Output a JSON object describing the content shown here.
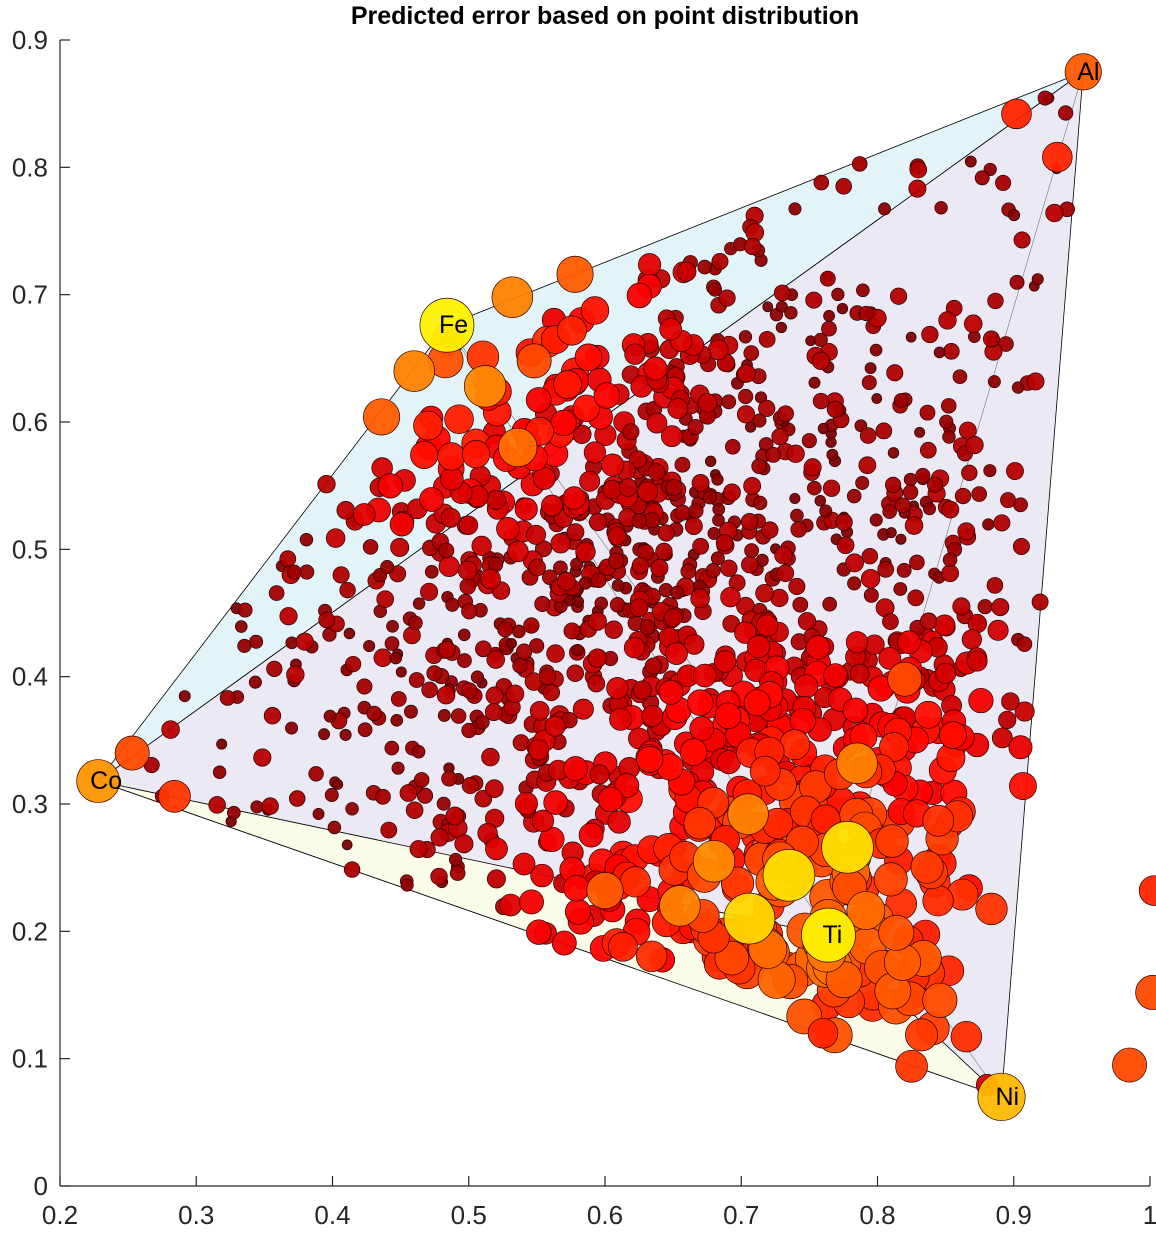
{
  "chart_data": {
    "type": "scatter",
    "title": "Predicted error based on point distribution",
    "xlabel": "",
    "ylabel": "",
    "xlim": [
      0.2,
      1.0
    ],
    "ylim": [
      0,
      0.9
    ],
    "xticks": [
      "0.2",
      "0.3",
      "0.4",
      "0.5",
      "0.6",
      "0.7",
      "0.8",
      "0.9",
      "1"
    ],
    "yticks": [
      "0",
      "0.1",
      "0.2",
      "0.3",
      "0.4",
      "0.5",
      "0.6",
      "0.7",
      "0.8",
      "0.9"
    ],
    "grid": false,
    "legend": "none",
    "colormap": "hot",
    "vertices": [
      {
        "label": "Co",
        "x": 0.228,
        "y": 0.318
      },
      {
        "label": "Fe",
        "x": 0.484,
        "y": 0.676
      },
      {
        "label": "Al",
        "x": 0.951,
        "y": 0.875
      },
      {
        "label": "Ni",
        "x": 0.891,
        "y": 0.07
      },
      {
        "label": "Ti",
        "x": 0.764,
        "y": 0.197
      }
    ],
    "faces": [
      {
        "vertices": [
          "Co",
          "Fe",
          "Al"
        ],
        "color": "#dff3f6"
      },
      {
        "vertices": [
          "Co",
          "Al",
          "Ni"
        ],
        "color": "#e9e7f3"
      },
      {
        "vertices": [
          "Co",
          "Ni",
          "Ti"
        ],
        "color": "#fdfde9"
      }
    ],
    "points": [
      {
        "x": 0.228,
        "y": 0.318,
        "error": 0.75
      },
      {
        "x": 0.484,
        "y": 0.676,
        "error": 1.0
      },
      {
        "x": 0.951,
        "y": 0.875,
        "error": 0.6
      },
      {
        "x": 0.891,
        "y": 0.07,
        "error": 0.85
      },
      {
        "x": 0.764,
        "y": 0.197,
        "error": 1.0
      },
      {
        "x": 0.735,
        "y": 0.244,
        "error": 0.95
      },
      {
        "x": 0.778,
        "y": 0.266,
        "error": 0.95
      },
      {
        "x": 0.706,
        "y": 0.21,
        "error": 0.93
      },
      {
        "x": 0.532,
        "y": 0.698,
        "error": 0.7
      },
      {
        "x": 0.578,
        "y": 0.716,
        "error": 0.6
      },
      {
        "x": 0.46,
        "y": 0.64,
        "error": 0.7
      },
      {
        "x": 0.512,
        "y": 0.628,
        "error": 0.72
      },
      {
        "x": 0.436,
        "y": 0.604,
        "error": 0.6
      },
      {
        "x": 0.536,
        "y": 0.58,
        "error": 0.65
      },
      {
        "x": 0.548,
        "y": 0.648,
        "error": 0.55
      },
      {
        "x": 0.785,
        "y": 0.332,
        "error": 0.7
      },
      {
        "x": 0.655,
        "y": 0.22,
        "error": 0.7
      },
      {
        "x": 0.68,
        "y": 0.255,
        "error": 0.72
      },
      {
        "x": 0.705,
        "y": 0.292,
        "error": 0.7
      },
      {
        "x": 0.6,
        "y": 0.232,
        "error": 0.6
      },
      {
        "x": 0.82,
        "y": 0.398,
        "error": 0.55
      },
      {
        "x": 0.253,
        "y": 0.34,
        "error": 0.55
      },
      {
        "x": 0.284,
        "y": 0.306,
        "error": 0.5
      },
      {
        "x": 1.002,
        "y": 0.152,
        "error": 0.55
      },
      {
        "x": 1.003,
        "y": 0.232,
        "error": 0.45
      },
      {
        "x": 0.932,
        "y": 0.808,
        "error": 0.45
      },
      {
        "x": 0.902,
        "y": 0.842,
        "error": 0.45
      },
      {
        "x": 0.825,
        "y": 0.094,
        "error": 0.5
      },
      {
        "x": 0.76,
        "y": 0.12,
        "error": 0.45
      },
      {
        "x": 0.985,
        "y": 0.095,
        "error": 0.55
      }
    ]
  }
}
